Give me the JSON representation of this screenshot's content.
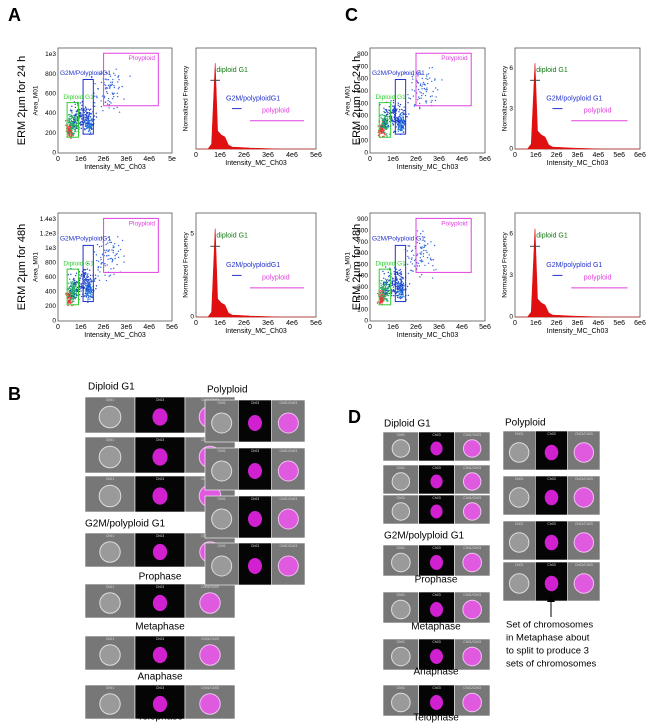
{
  "channels": [
    "Ch01",
    "Ch03",
    "Ch01/Ch03"
  ],
  "panels": {
    "A": {
      "label": "A",
      "rows": [
        {
          "row_label": "ERM 2µm for 24 h",
          "scatter": {
            "x_label": "Intensity_MC_Ch03",
            "y_label": "Area_M01",
            "xticks": [
              "0",
              "1e6",
              "2e6",
              "3e6",
              "4e6",
              "5e"
            ],
            "yticks": [
              "0",
              "200",
              "400",
              "600",
              "800",
              "1e3"
            ],
            "gates": [
              "Ployploid",
              "G2M/PolyploidG1",
              "Diploid G1"
            ]
          },
          "histogram": {
            "x_label": "Intensity_MC_Ch03",
            "y_label": "Normalized Frequency",
            "xticks": [
              "0",
              "1e6",
              "2e6",
              "3e6",
              "4e6",
              "5e6"
            ],
            "gates": [
              "diploid G1",
              "G2M/polyploidG1",
              "polyploid"
            ]
          }
        },
        {
          "row_label": "ERM 2µm for 48h",
          "scatter": {
            "x_label": "Intensity_MC_Ch03",
            "y_label": "Area_M01",
            "xticks": [
              "0",
              "1e6",
              "2e6",
              "3e6",
              "4e6",
              "5e6"
            ],
            "yticks": [
              "0",
              "200",
              "400",
              "600",
              "800",
              "1e3",
              "1.2e3",
              "1.4e3"
            ],
            "gates": [
              "Ployploid",
              "G2M/PolyploidG1",
              "Diploid G1"
            ]
          },
          "histogram": {
            "x_label": "Intensity_MC_Ch03",
            "y_label": "Normalized Frequency",
            "xticks": [
              "0",
              "1e6",
              "2e6",
              "3e6",
              "4e6",
              "5e6"
            ],
            "yticks": [
              "0",
              "5"
            ],
            "gates": [
              "diploid G1",
              "G2M/polyploidG1",
              "polyploid"
            ]
          }
        }
      ]
    },
    "C": {
      "label": "C",
      "rows": [
        {
          "row_label": "ERM 2µm for 24 h",
          "scatter": {
            "x_label": "Intensity_MC_Ch03",
            "y_label": "Area_M01",
            "xticks": [
              "0",
              "1e6",
              "2e6",
              "3e6",
              "4e6",
              "5e6"
            ],
            "yticks": [
              "0",
              "100",
              "200",
              "300",
              "400",
              "500",
              "600",
              "700",
              "800"
            ],
            "gates": [
              "Polyploid",
              "G2M/Polyploid G1",
              "Diploid G1"
            ]
          },
          "histogram": {
            "x_label": "Intensity_MC_Ch03",
            "y_label": "Normalized Frequency",
            "xticks": [
              "0",
              "1e6",
              "2e6",
              "3e6",
              "4e6",
              "5e6",
              "6e6"
            ],
            "yticks": [
              "0",
              "3",
              "6"
            ],
            "gates": [
              "diploid G1",
              "G2M/polyploid G1",
              "polyploid"
            ]
          }
        },
        {
          "row_label": "ERM 2µm for 48h",
          "scatter": {
            "x_label": "Intensity_MC_Ch03",
            "y_label": "Area_M01",
            "xticks": [
              "0",
              "1e6",
              "2e6",
              "3e6",
              "4e6",
              "5e6"
            ],
            "yticks": [
              "0",
              "100",
              "200",
              "300",
              "400",
              "500",
              "600",
              "700",
              "800",
              "900"
            ],
            "gates": [
              "Polyploid",
              "G2M/Polyploid G1",
              "Diploid G1"
            ]
          },
          "histogram": {
            "x_label": "Intensity_MC_Ch03",
            "y_label": "Normalized Frequency",
            "xticks": [
              "0",
              "1e6",
              "2e6",
              "3e6",
              "4e6",
              "5e6",
              "6e6"
            ],
            "yticks": [
              "0",
              "3",
              "6"
            ],
            "gates": [
              "diploid G1",
              "G2M/polyploid G1",
              "polyploid"
            ]
          }
        }
      ]
    },
    "B": {
      "label": "B",
      "diploid": "Diploid G1",
      "g2m": "G2M/polyploid G1",
      "phases": [
        "Prophase",
        "Metaphase",
        "Anaphase",
        "Telophase"
      ],
      "polyploid": "Polyploid"
    },
    "D": {
      "label": "D",
      "diploid": "Diploid G1",
      "g2m": "G2M/polyploid G1",
      "phases": [
        "Prophase",
        "Metaphase",
        "Anaphase",
        "Telophase"
      ],
      "polyploid": "Polyploid",
      "note": [
        "Set of chromosomes",
        "in Metaphase  about",
        "to split to produce 3",
        "sets of chromosomes"
      ]
    }
  }
}
